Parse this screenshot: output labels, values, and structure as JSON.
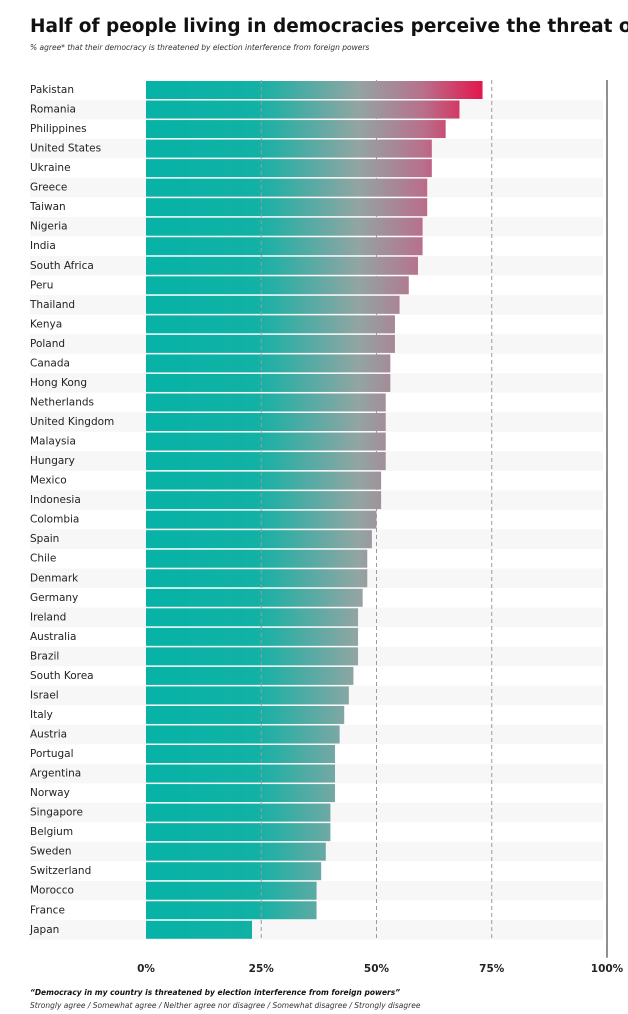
{
  "chart_data": {
    "type": "bar",
    "orientation": "horizontal",
    "title": "Half of people living in democracies perceive the threat of foreig",
    "subtitle": "% agree* that their democracy is threatened by election interference from foreign powers",
    "categories": [
      "Pakistan",
      "Romania",
      "Philippines",
      "United States",
      "Ukraine",
      "Greece",
      "Taiwan",
      "Nigeria",
      "India",
      "South Africa",
      "Peru",
      "Thailand",
      "Kenya",
      "Poland",
      "Canada",
      "Hong Kong",
      "Netherlands",
      "United Kingdom",
      "Malaysia",
      "Hungary",
      "Mexico",
      "Indonesia",
      "Colombia",
      "Spain",
      "Chile",
      "Denmark",
      "Germany",
      "Ireland",
      "Australia",
      "Brazil",
      "South Korea",
      "Israel",
      "Italy",
      "Austria",
      "Portugal",
      "Argentina",
      "Norway",
      "Singapore",
      "Belgium",
      "Sweden",
      "Switzerland",
      "Morocco",
      "France",
      "Japan"
    ],
    "values": [
      73,
      68,
      65,
      62,
      62,
      61,
      61,
      60,
      60,
      59,
      57,
      55,
      54,
      54,
      53,
      53,
      52,
      52,
      52,
      52,
      51,
      51,
      50,
      49,
      48,
      48,
      47,
      46,
      46,
      46,
      45,
      44,
      43,
      42,
      41,
      41,
      41,
      40,
      40,
      39,
      38,
      37,
      37,
      23
    ],
    "color_low": "#06b3a6",
    "color_high": "#e2174c",
    "xlim": [
      0,
      100
    ],
    "xticks": [
      {
        "value": 0,
        "label": "0%"
      },
      {
        "value": 25,
        "label": "25%"
      },
      {
        "value": 50,
        "label": "50%"
      },
      {
        "value": 75,
        "label": "75%"
      },
      {
        "value": 100,
        "label": "100%"
      }
    ],
    "grid": true,
    "notes": [
      "“Democracy in my country is threatened by election interference from foreign powers”",
      "Strongly agree / Somewhat agree / Neither agree nor disagree / Somewhat disagree / Strongly disagree"
    ]
  }
}
